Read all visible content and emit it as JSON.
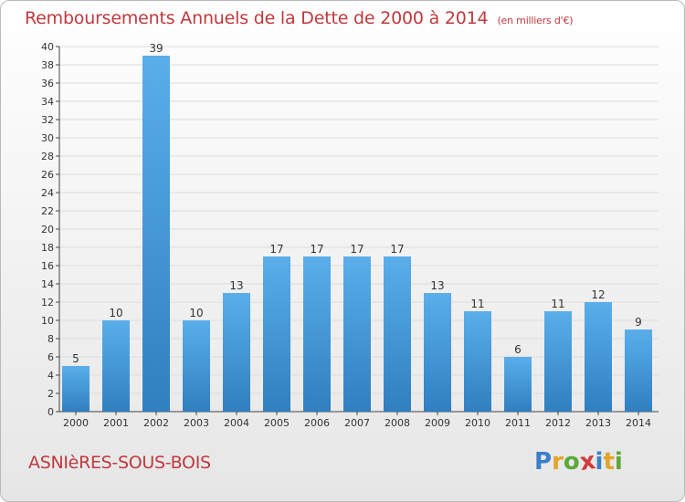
{
  "title": "Remboursements Annuels de la Dette de 2000 à 2014",
  "title_unit": "(en milliers d'€)",
  "commune": "ASNIèRES-SOUS-BOIS",
  "logo": {
    "text": "Proxiti",
    "letters": [
      {
        "char": "P",
        "color": "#3a7fc8"
      },
      {
        "char": "r",
        "color": "#e2a52a"
      },
      {
        "char": "o",
        "color": "#5aa83c"
      },
      {
        "char": "x",
        "color": "#d23b3b"
      },
      {
        "char": "i",
        "color": "#3a7fc8"
      },
      {
        "char": "t",
        "color": "#e2a52a"
      },
      {
        "char": "i",
        "color": "#5aa83c"
      }
    ]
  },
  "colors": {
    "bar_light": "#5aaeea",
    "bar_dark": "#2f7fc1",
    "title": "#c0393d",
    "grid": "#dcdcdc"
  },
  "chart_data": {
    "type": "bar",
    "categories": [
      "2000",
      "2001",
      "2002",
      "2003",
      "2004",
      "2005",
      "2006",
      "2007",
      "2008",
      "2009",
      "2010",
      "2011",
      "2012",
      "2013",
      "2014"
    ],
    "values": [
      5,
      10,
      39,
      10,
      13,
      17,
      17,
      17,
      17,
      13,
      11,
      6,
      11,
      12,
      9
    ],
    "ylim": [
      0,
      40
    ],
    "yticks": [
      0,
      2,
      4,
      6,
      8,
      10,
      12,
      14,
      16,
      18,
      20,
      22,
      24,
      26,
      28,
      30,
      32,
      34,
      36,
      38,
      40
    ],
    "grid": true,
    "xlabel": "",
    "ylabel": ""
  }
}
